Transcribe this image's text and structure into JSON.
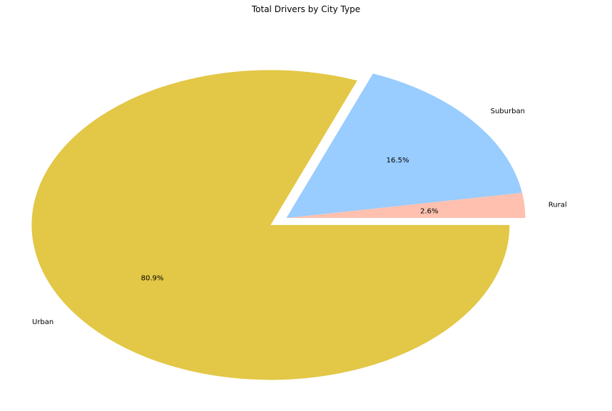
{
  "chart_data": {
    "type": "pie",
    "title": "Total Drivers by City Type",
    "categories": [
      "Rural",
      "Suburban",
      "Urban"
    ],
    "values": [
      2.6,
      16.5,
      80.9
    ],
    "value_labels": [
      "2.6%",
      "16.5%",
      "80.9%"
    ],
    "colors": [
      "#ffc0b0",
      "#99ccff",
      "#e3c746"
    ],
    "start_angle_deg": 0,
    "direction": "counterclockwise",
    "exploded": [
      "Urban"
    ],
    "legend": false
  }
}
